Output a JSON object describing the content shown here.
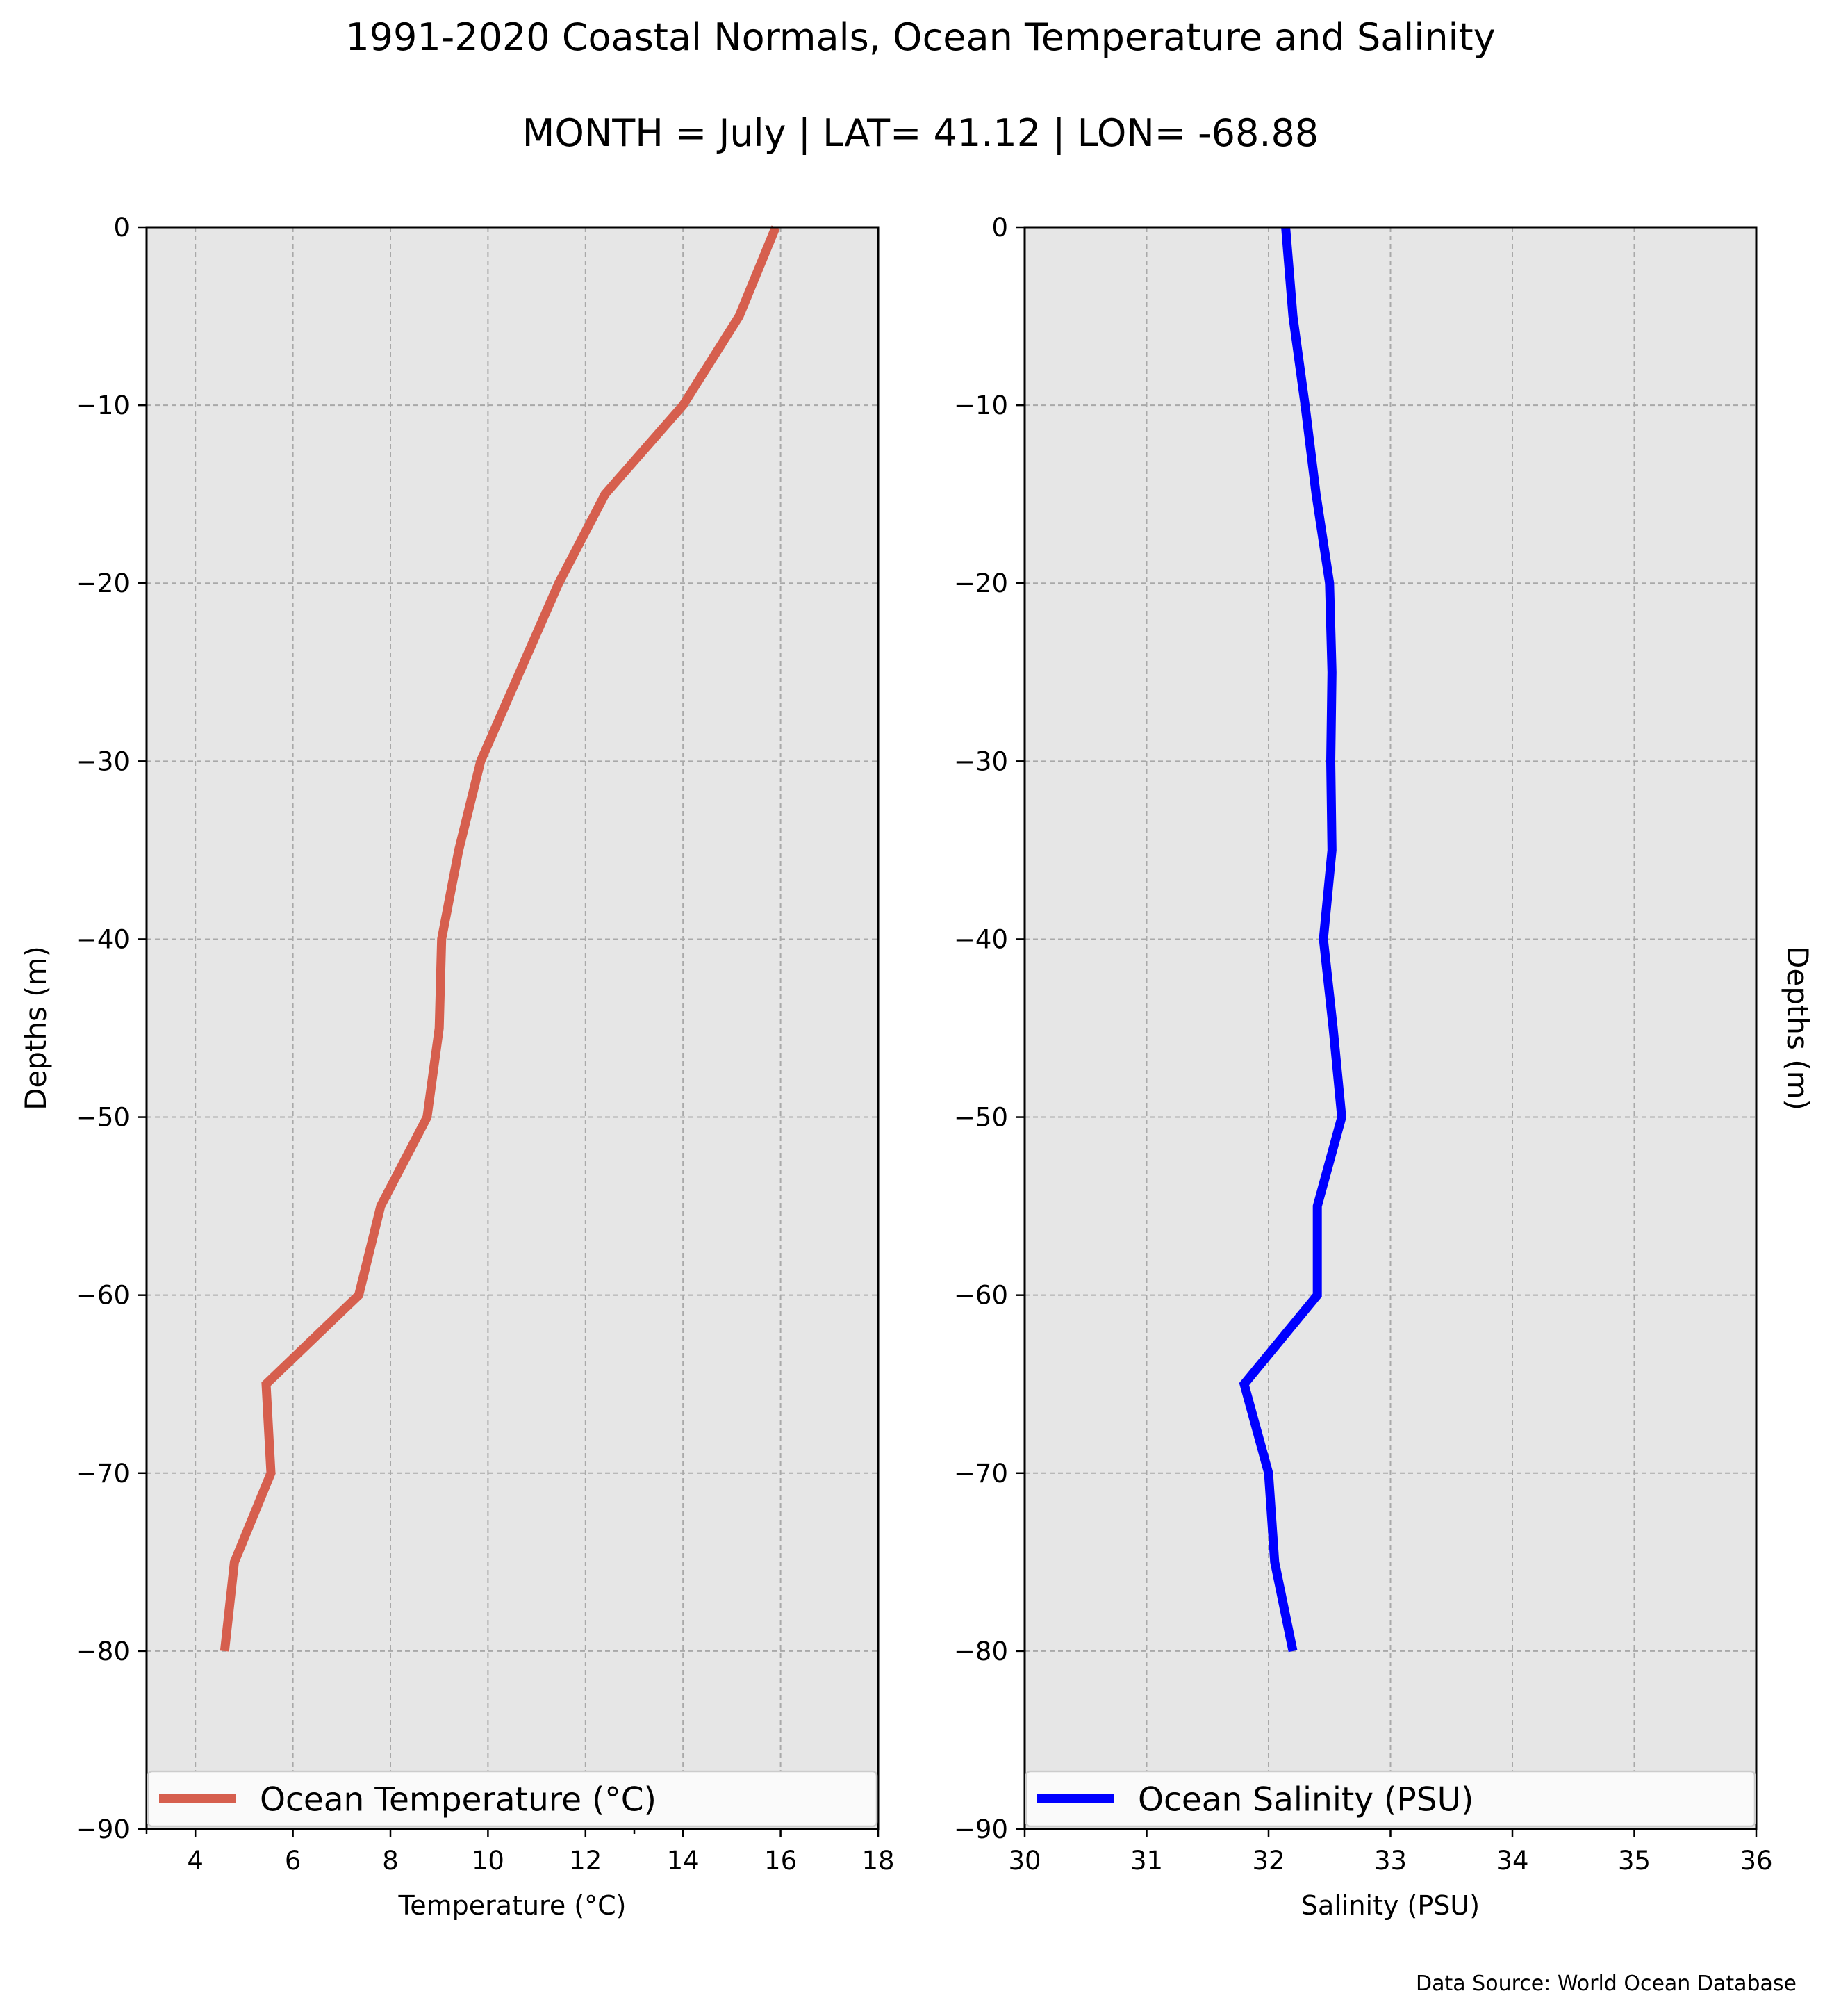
{
  "figure": {
    "title": "1991-2020 Coastal Normals, Ocean Temperature and Salinity",
    "subtitle": "MONTH = July | LAT= 41.12 | LON= -68.88",
    "source_note": "Data Source: World Ocean Database"
  },
  "chart_data": [
    {
      "type": "line",
      "name": "temperature-profile",
      "xlabel": "Temperature ($^\\circ$C)",
      "xlabel_display": "Temperature (°C)",
      "ylabel": "Depths (m)",
      "xlim": [
        3,
        18
      ],
      "ylim": [
        -90,
        0
      ],
      "xticks": [
        4,
        6,
        8,
        10,
        12,
        14,
        16,
        18
      ],
      "yticks": [
        0,
        -10,
        -20,
        -30,
        -40,
        -50,
        -60,
        -70,
        -80,
        -90
      ],
      "grid": true,
      "legend_position": "lower center",
      "series": [
        {
          "name": "Ocean Temperature (°C)",
          "color": "#d65f4e",
          "x": [
            15.9,
            15.15,
            14.0,
            12.4,
            11.45,
            10.65,
            9.85,
            9.4,
            9.05,
            9.0,
            8.75,
            7.8,
            7.35,
            5.45,
            5.55,
            4.8,
            4.6
          ],
          "y": [
            0,
            -5,
            -10,
            -15,
            -20,
            -25,
            -30,
            -35,
            -40,
            -45,
            -50,
            -55,
            -60,
            -65,
            -70,
            -75,
            -80
          ]
        }
      ]
    },
    {
      "type": "line",
      "name": "salinity-profile",
      "xlabel": "Salinity (PSU)",
      "ylabel": "Depths (m)",
      "xlim": [
        30,
        36
      ],
      "ylim": [
        -90,
        0
      ],
      "xticks": [
        30,
        31,
        32,
        33,
        34,
        35,
        36
      ],
      "yticks": [
        0,
        -10,
        -20,
        -30,
        -40,
        -50,
        -60,
        -70,
        -80,
        -90
      ],
      "grid": true,
      "legend_position": "lower center",
      "series": [
        {
          "name": "Ocean Salinity (PSU)",
          "color": "#0000ff",
          "x": [
            32.14,
            32.2,
            32.3,
            32.39,
            32.5,
            32.52,
            32.51,
            32.52,
            32.45,
            32.53,
            32.6,
            32.4,
            32.4,
            31.8,
            32.0,
            32.05,
            32.2
          ],
          "y": [
            0,
            -5,
            -10,
            -15,
            -20,
            -25,
            -30,
            -35,
            -40,
            -45,
            -50,
            -55,
            -60,
            -65,
            -70,
            -75,
            -80
          ]
        }
      ]
    }
  ]
}
